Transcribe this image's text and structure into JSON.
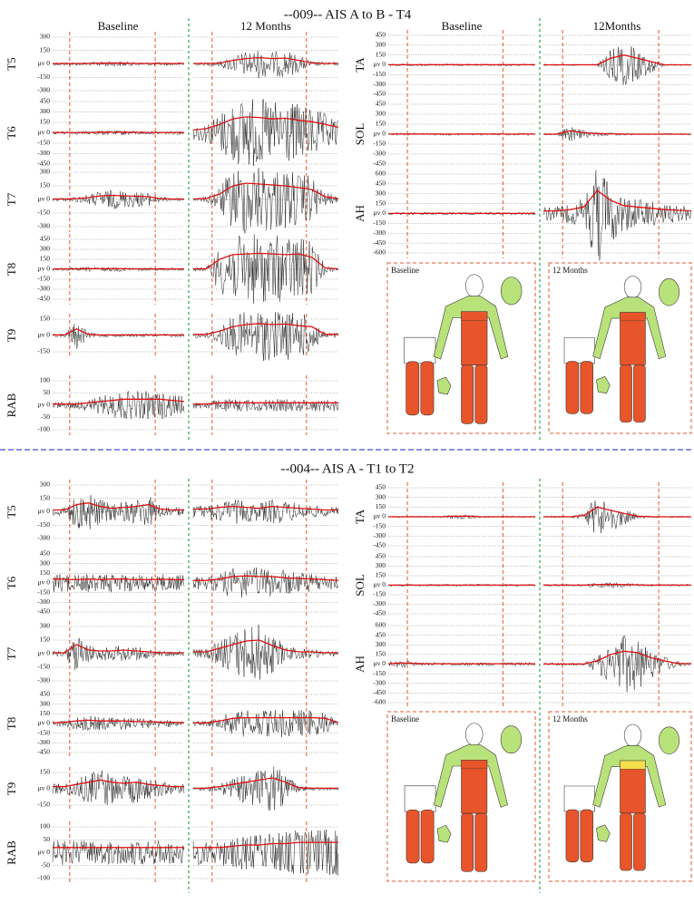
{
  "sections": [
    {
      "title": "--009-- AIS A to B - T4",
      "headers": [
        "Baseline",
        "12 Months",
        "Baseline",
        "12Months"
      ],
      "trunk": [
        {
          "muscle": "T5",
          "ylim": [
            -300,
            300
          ],
          "yticks": [
            300,
            150,
            {
              "value": 0,
              "label": "μv 0"
            },
            -150,
            -300
          ],
          "baseline": [
            5,
            5,
            5,
            5,
            8,
            10,
            8,
            5,
            5,
            5,
            5,
            5
          ],
          "month12": [
            5,
            5,
            10,
            40,
            60,
            70,
            60,
            65,
            40,
            10,
            5,
            5
          ]
        },
        {
          "muscle": "T6",
          "ylim": [
            -450,
            450
          ],
          "yticks": [
            450,
            300,
            150,
            {
              "value": 0,
              "label": "μv 0"
            },
            -150,
            -300,
            -450
          ],
          "baseline": [
            5,
            5,
            5,
            5,
            10,
            8,
            10,
            8,
            5,
            5,
            5,
            5
          ],
          "month12": [
            40,
            60,
            120,
            200,
            230,
            220,
            200,
            210,
            180,
            160,
            120,
            80
          ]
        },
        {
          "muscle": "T7",
          "ylim": [
            -300,
            300
          ],
          "yticks": [
            300,
            150,
            {
              "value": 0,
              "label": "μv 0"
            },
            -150,
            -300
          ],
          "baseline": [
            5,
            5,
            10,
            20,
            40,
            45,
            40,
            35,
            30,
            10,
            5,
            5
          ],
          "month12": [
            5,
            10,
            60,
            150,
            180,
            170,
            160,
            150,
            130,
            110,
            30,
            10
          ]
        },
        {
          "muscle": "T8",
          "ylim": [
            -450,
            450
          ],
          "yticks": [
            450,
            300,
            150,
            {
              "value": 0,
              "label": "μv 0"
            },
            -150,
            -300,
            -450
          ],
          "baseline": [
            5,
            5,
            5,
            10,
            8,
            10,
            8,
            5,
            5,
            5,
            5,
            5
          ],
          "month12": [
            5,
            10,
            150,
            220,
            230,
            240,
            230,
            220,
            230,
            180,
            20,
            5
          ]
        },
        {
          "muscle": "T9",
          "ylim": [
            -150,
            150
          ],
          "yticks": [
            150,
            {
              "value": 0,
              "label": "μv 0"
            },
            -150
          ],
          "baseline": [
            5,
            5,
            60,
            10,
            5,
            5,
            5,
            5,
            5,
            5,
            5,
            5
          ],
          "month12": [
            10,
            10,
            40,
            80,
            100,
            110,
            100,
            105,
            90,
            80,
            10,
            10
          ]
        },
        {
          "muscle": "RAB",
          "ylim": [
            -100,
            100
          ],
          "yticks": [
            100,
            50,
            {
              "value": 0,
              "label": "μv 0"
            },
            -50,
            -100
          ],
          "baseline": [
            5,
            5,
            5,
            10,
            15,
            20,
            25,
            25,
            25,
            25,
            20,
            15
          ],
          "month12": [
            5,
            5,
            10,
            10,
            10,
            10,
            10,
            10,
            10,
            10,
            10,
            10
          ]
        }
      ],
      "leg": [
        {
          "muscle": "TA",
          "ylim": [
            -450,
            450
          ],
          "yticks": [
            450,
            300,
            150,
            {
              "value": 0,
              "label": "μv 0"
            },
            -150,
            -300,
            -450
          ],
          "baseline": [
            2,
            2,
            2,
            2,
            2,
            2,
            2,
            2,
            2,
            2,
            2,
            2
          ],
          "month12": [
            0,
            0,
            0,
            0,
            0,
            100,
            150,
            100,
            50,
            0,
            0,
            0
          ]
        },
        {
          "muscle": "SOL",
          "ylim": [
            -450,
            450
          ],
          "yticks": [
            450,
            300,
            150,
            {
              "value": 0,
              "label": "μv 0"
            },
            -150,
            -300,
            -450
          ],
          "baseline": [
            2,
            2,
            2,
            2,
            2,
            2,
            2,
            2,
            2,
            2,
            2,
            2
          ],
          "month12": [
            0,
            0,
            50,
            20,
            10,
            5,
            2,
            0,
            0,
            0,
            0,
            0
          ]
        },
        {
          "muscle": "AH",
          "ylim": [
            -600,
            600
          ],
          "yticks": [
            600,
            450,
            300,
            150,
            {
              "value": 0,
              "label": "μv 0"
            },
            -150,
            -300,
            -450,
            -600
          ],
          "baseline": [
            2,
            2,
            2,
            2,
            2,
            2,
            2,
            2,
            2,
            2,
            2,
            2
          ],
          "month12": [
            40,
            40,
            60,
            100,
            350,
            200,
            120,
            100,
            80,
            60,
            50,
            40
          ]
        }
      ],
      "body_maps": [
        "Baseline",
        "12 Months"
      ]
    },
    {
      "title": "--004-- AIS A - T1 to T2",
      "trunk": [
        {
          "muscle": "T5",
          "ylim": [
            -300,
            300
          ],
          "yticks": [
            300,
            150,
            {
              "value": 0,
              "label": "μv 0"
            },
            -150,
            -300
          ],
          "baseline": [
            20,
            20,
            80,
            100,
            60,
            40,
            50,
            60,
            80,
            30,
            20,
            20
          ],
          "month12": [
            30,
            30,
            50,
            60,
            50,
            40,
            60,
            50,
            40,
            30,
            20,
            20
          ]
        },
        {
          "muscle": "T6",
          "ylim": [
            -450,
            450
          ],
          "yticks": [
            450,
            300,
            150,
            {
              "value": 0,
              "label": "μv 0"
            },
            -150,
            -300,
            -450
          ],
          "baseline": [
            60,
            60,
            50,
            60,
            50,
            60,
            60,
            50,
            50,
            60,
            50,
            50
          ],
          "month12": [
            40,
            40,
            60,
            100,
            110,
            100,
            100,
            80,
            70,
            60,
            50,
            40
          ]
        },
        {
          "muscle": "T7",
          "ylim": [
            -300,
            300
          ],
          "yticks": [
            300,
            150,
            {
              "value": 0,
              "label": "μv 0"
            },
            -150,
            -300
          ],
          "baseline": [
            10,
            10,
            100,
            40,
            30,
            30,
            40,
            30,
            20,
            10,
            10,
            10
          ],
          "month12": [
            20,
            20,
            60,
            100,
            140,
            150,
            90,
            40,
            20,
            20,
            10,
            10
          ]
        },
        {
          "muscle": "T8",
          "ylim": [
            -450,
            450
          ],
          "yticks": [
            450,
            300,
            150,
            {
              "value": 0,
              "label": "μv 0"
            },
            -150,
            -300,
            -450
          ],
          "baseline": [
            10,
            20,
            40,
            50,
            40,
            40,
            40,
            30,
            30,
            20,
            20,
            10
          ],
          "month12": [
            10,
            10,
            40,
            80,
            90,
            90,
            90,
            90,
            90,
            90,
            80,
            10
          ]
        },
        {
          "muscle": "T9",
          "ylim": [
            -150,
            150
          ],
          "yticks": [
            150,
            {
              "value": 0,
              "label": "μv 0"
            },
            -150
          ],
          "baseline": [
            20,
            20,
            40,
            60,
            80,
            60,
            50,
            60,
            40,
            30,
            20,
            20
          ],
          "month12": [
            5,
            5,
            20,
            40,
            60,
            80,
            100,
            60,
            10,
            5,
            5,
            5
          ]
        },
        {
          "muscle": "RAB",
          "ylim": [
            -100,
            100
          ],
          "yticks": [
            100,
            50,
            {
              "value": 0,
              "label": "μv 0"
            },
            -50,
            -100
          ],
          "baseline": [
            20,
            20,
            20,
            20,
            20,
            20,
            20,
            20,
            20,
            20,
            20,
            20
          ],
          "month12": [
            20,
            20,
            20,
            25,
            30,
            30,
            35,
            35,
            40,
            40,
            40,
            40
          ]
        }
      ],
      "leg": [
        {
          "muscle": "TA",
          "ylim": [
            -450,
            450
          ],
          "yticks": [
            450,
            300,
            150,
            {
              "value": 0,
              "label": "μv 0"
            },
            -150,
            -300,
            -450
          ],
          "baseline": [
            0,
            0,
            0,
            0,
            0,
            10,
            10,
            0,
            0,
            0,
            0,
            0
          ],
          "month12": [
            0,
            0,
            0,
            20,
            150,
            100,
            50,
            10,
            0,
            0,
            0,
            0
          ]
        },
        {
          "muscle": "SOL",
          "ylim": [
            -450,
            450
          ],
          "yticks": [
            450,
            300,
            150,
            {
              "value": 0,
              "label": "μv 0"
            },
            -150,
            -300,
            -450
          ],
          "baseline": [
            2,
            2,
            2,
            2,
            2,
            2,
            2,
            2,
            2,
            2,
            2,
            2
          ],
          "month12": [
            2,
            2,
            2,
            2,
            10,
            15,
            10,
            5,
            2,
            2,
            2,
            2
          ]
        },
        {
          "muscle": "AH",
          "ylim": [
            -600,
            600
          ],
          "yticks": [
            600,
            450,
            300,
            150,
            {
              "value": 0,
              "label": "μv 0"
            },
            -150,
            -300,
            -450,
            -600
          ],
          "baseline": [
            5,
            20,
            10,
            5,
            5,
            5,
            5,
            5,
            5,
            5,
            5,
            5
          ],
          "month12": [
            2,
            2,
            2,
            2,
            50,
            150,
            200,
            180,
            100,
            50,
            10,
            5
          ]
        }
      ],
      "body_maps": [
        "Baseline",
        "12 Months"
      ]
    }
  ]
}
